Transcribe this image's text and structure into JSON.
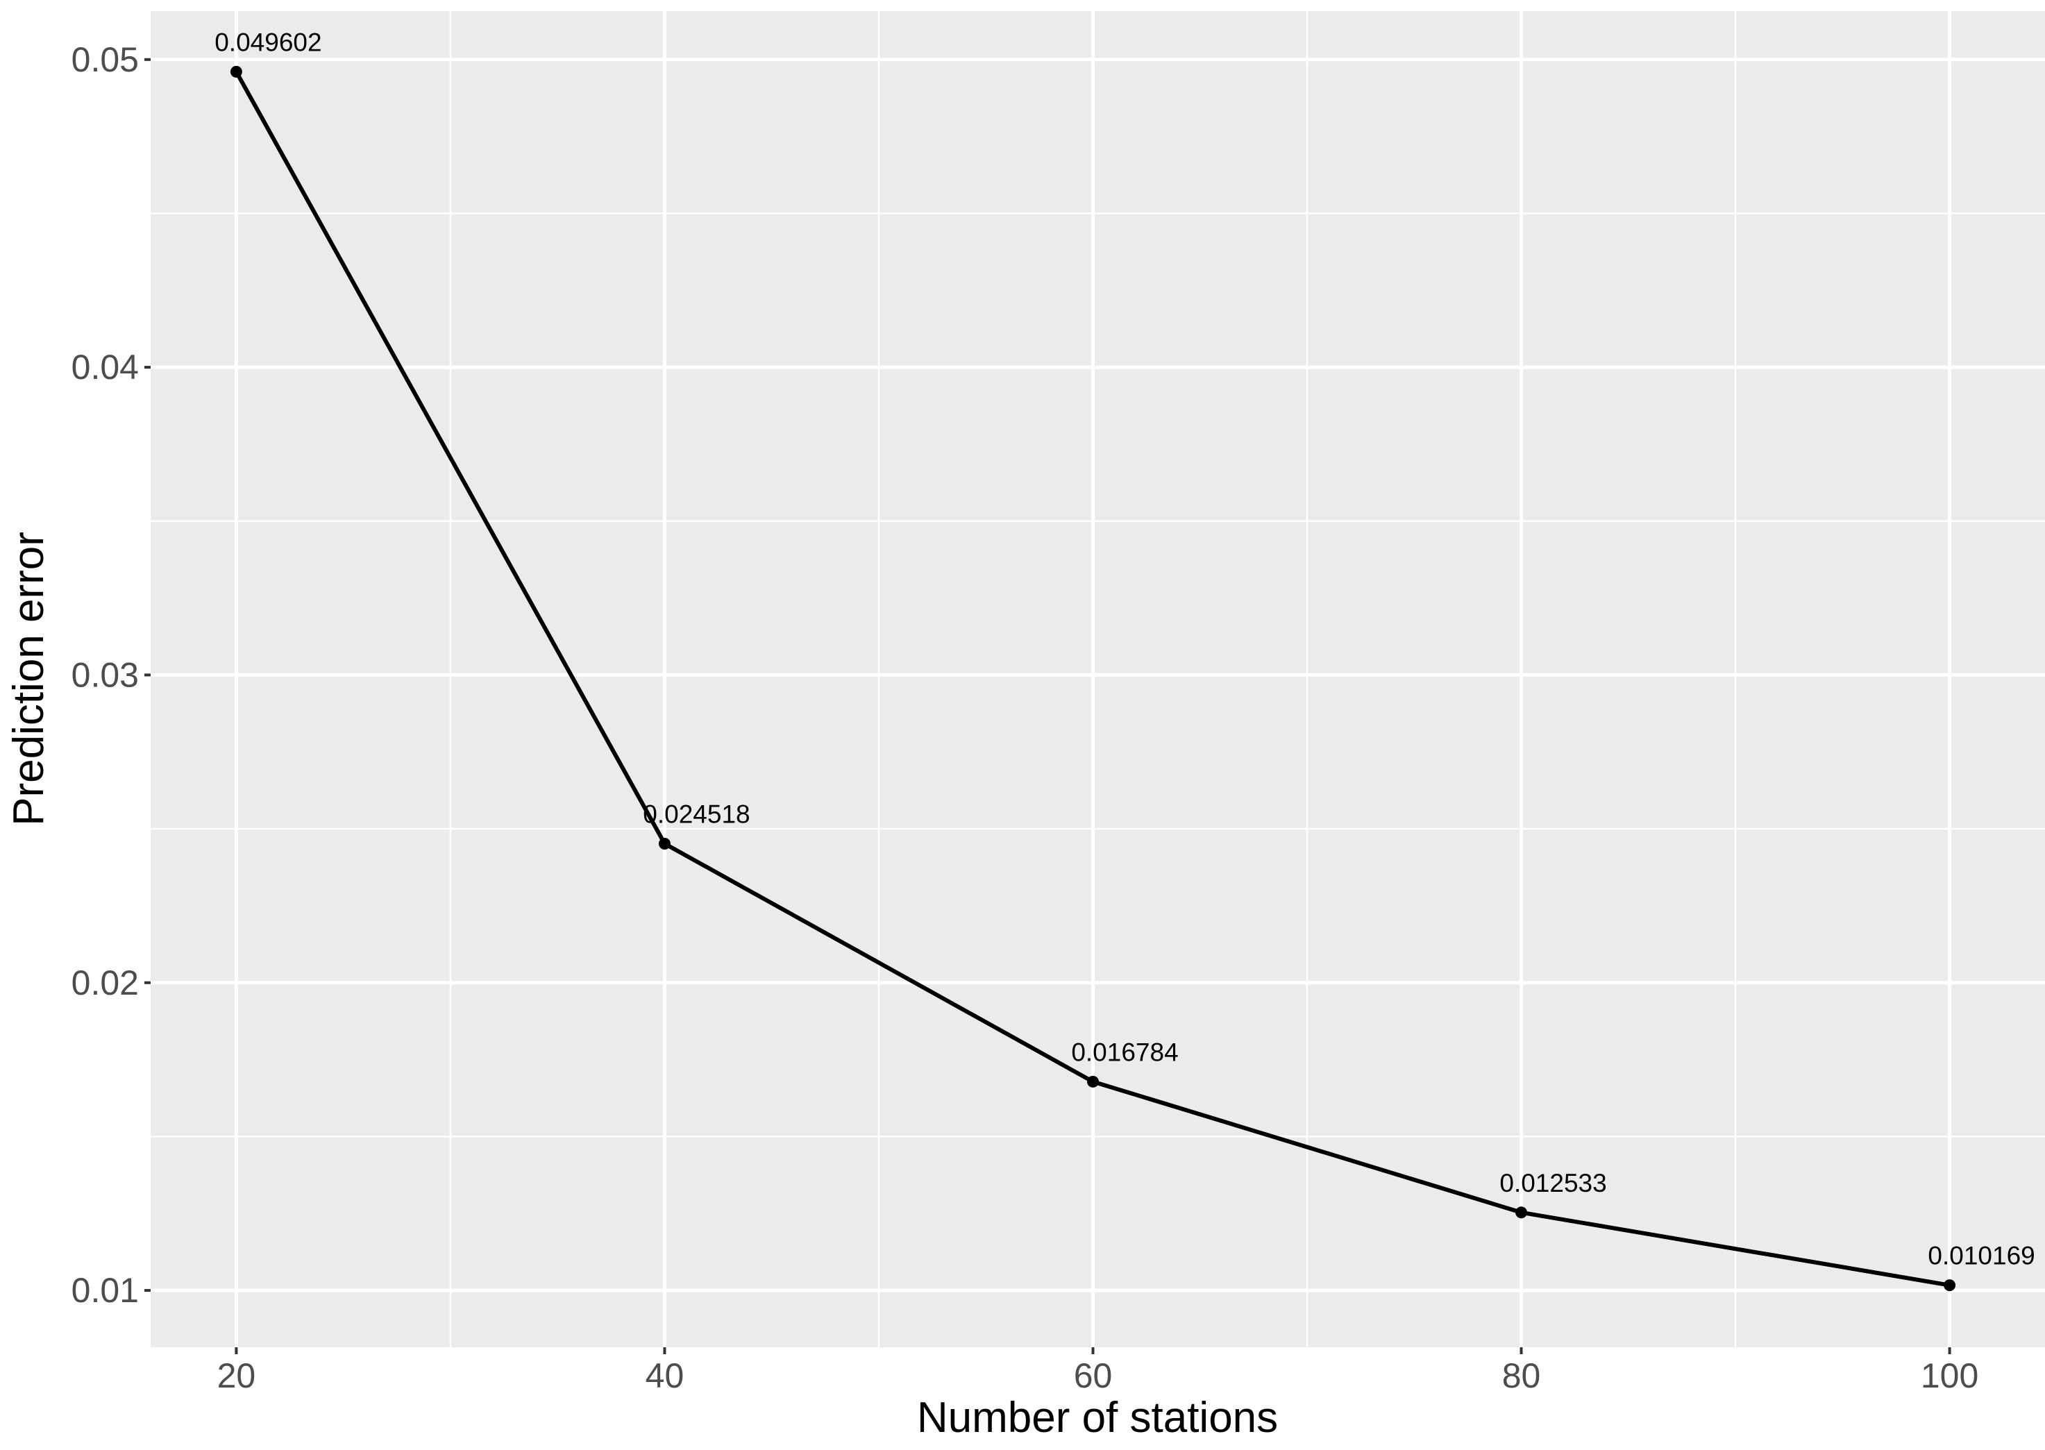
{
  "chart_data": {
    "type": "line",
    "title": "",
    "xlabel": "Number of stations",
    "ylabel": "Prediction error",
    "x": [
      20,
      40,
      60,
      80,
      100
    ],
    "y": [
      0.049602,
      0.024518,
      0.016784,
      0.012533,
      0.010169
    ],
    "point_labels": [
      "0.049602",
      "0.024518",
      "0.016784",
      "0.012533",
      "0.010169"
    ],
    "xlim": [
      16,
      104
    ],
    "ylim": [
      0.0081975,
      0.0515737
    ],
    "x_major_ticks": [
      20,
      40,
      60,
      80,
      100
    ],
    "x_tick_labels": [
      "20",
      "40",
      "60",
      "80",
      "100"
    ],
    "x_minor_ticks": [
      30,
      50,
      70,
      90
    ],
    "y_major_ticks": [
      0.01,
      0.02,
      0.03,
      0.04,
      0.05
    ],
    "y_tick_labels": [
      "0.01",
      "0.02",
      "0.03",
      "0.04",
      "0.05"
    ],
    "y_minor_ticks": [
      0.015,
      0.025,
      0.035,
      0.045
    ],
    "grid": true,
    "legend_position": "none",
    "theme": {
      "panel_bg": "#EBEBEB",
      "outer_bg": "#FFFFFF",
      "grid_color": "#FFFFFF",
      "tick_mark_color": "#333333",
      "tick_label_color": "#4D4D4D",
      "axis_title_color": "#000000",
      "line_color": "#000000",
      "point_color": "#000000",
      "point_label_color": "#000000"
    }
  }
}
